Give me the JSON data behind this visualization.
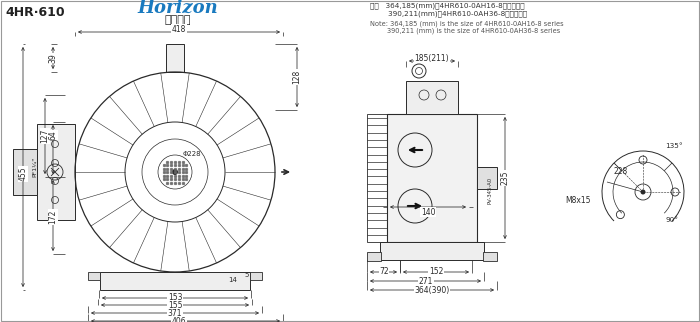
{
  "bg_color": "#ffffff",
  "line_color": "#2a2a2a",
  "dim_color": "#2a2a2a",
  "blue_color": "#1a7abf",
  "title_model": "4HR·610",
  "brand_horizon": "Horizon",
  "brand_chinese": "浩然风机",
  "note_zh1": "注：   364,185(mm)是4HR610-0AH16-8系列的尺寸",
  "note_zh2": "        390,211(mm)是4HR610-0AH36-8系列的尺寸",
  "note_en1": "Note: 364,185 (mm) is the size of 4HR610-0AH16-8 series",
  "note_en2": "        390,211 (mm) is the size of 4HR610-0AH36-8 series"
}
